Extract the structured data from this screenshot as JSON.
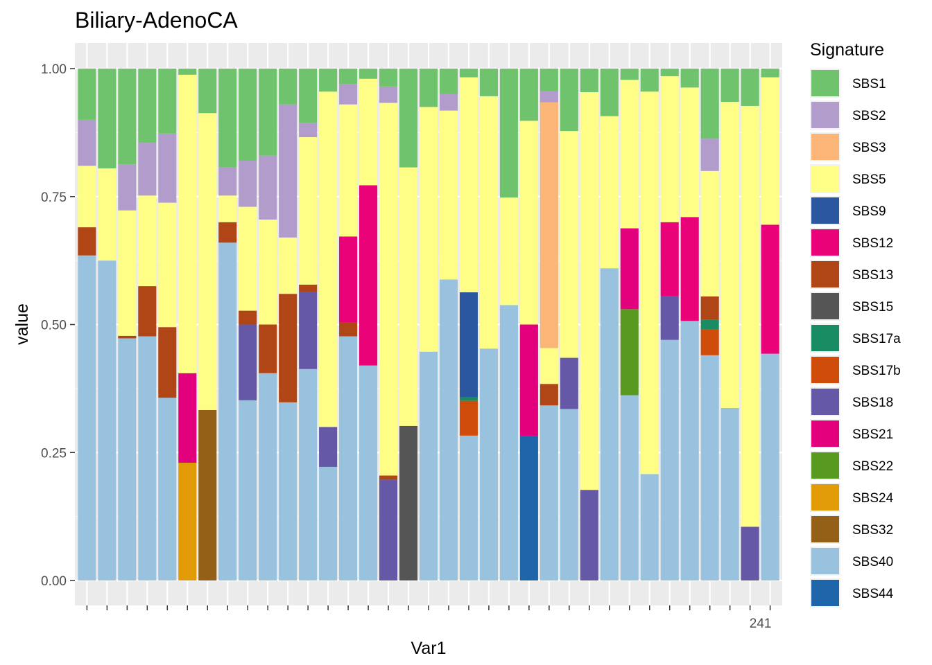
{
  "chart_data": {
    "type": "bar",
    "stacked": true,
    "title": "Biliary-AdenoCA",
    "xlabel": "Var1",
    "ylabel": "value",
    "ylim": [
      0,
      1
    ],
    "yticks": [
      "0.00",
      "0.25",
      "0.50",
      "0.75",
      "1.00"
    ],
    "ytick_values": [
      0,
      0.25,
      0.5,
      0.75,
      1.0
    ],
    "grid": true,
    "legend_title": "Signature",
    "legend_position": "right",
    "x_tick_label_visible": "241",
    "signatures": [
      "SBS1",
      "SBS2",
      "SBS3",
      "SBS5",
      "SBS9",
      "SBS12",
      "SBS13",
      "SBS15",
      "SBS17a",
      "SBS17b",
      "SBS18",
      "SBS21",
      "SBS22",
      "SBS24",
      "SBS32",
      "SBS40",
      "SBS44"
    ],
    "colors": {
      "SBS1": "#70c36d",
      "SBS2": "#b19ccb",
      "SBS3": "#fbb577",
      "SBS5": "#fefe87",
      "SBS9": "#2b57a0",
      "SBS12": "#ea0278",
      "SBS13": "#b04616",
      "SBS15": "#555555",
      "SBS17a": "#1a8c63",
      "SBS17b": "#cf4c0a",
      "SBS18": "#6558a7",
      "SBS21": "#e3007d",
      "SBS22": "#58991f",
      "SBS24": "#e09b06",
      "SBS32": "#946017",
      "SBS40": "#99c2de",
      "SBS44": "#1f65a9"
    },
    "stack_order": [
      "SBS44",
      "SBS40",
      "SBS32",
      "SBS24",
      "SBS22",
      "SBS21",
      "SBS18",
      "SBS17b",
      "SBS17a",
      "SBS15",
      "SBS13",
      "SBS12",
      "SBS9",
      "SBS5",
      "SBS3",
      "SBS2",
      "SBS1"
    ],
    "bars": [
      {
        "SBS40": 0.635,
        "SBS13": 0.055,
        "SBS5": 0.12,
        "SBS2": 0.09,
        "SBS1": 0.1
      },
      {
        "SBS40": 0.625,
        "SBS5": 0.18,
        "SBS1": 0.195
      },
      {
        "SBS40": 0.473,
        "SBS13": 0.005,
        "SBS5": 0.245,
        "SBS2": 0.09,
        "SBS1": 0.187
      },
      {
        "SBS40": 0.477,
        "SBS13": 0.098,
        "SBS5": 0.177,
        "SBS2": 0.103,
        "SBS1": 0.145
      },
      {
        "SBS40": 0.357,
        "SBS13": 0.138,
        "SBS5": 0.243,
        "SBS2": 0.135,
        "SBS1": 0.127
      },
      {
        "SBS24": 0.23,
        "SBS21": 0.175,
        "SBS5": 0.583,
        "SBS1": 0.012
      },
      {
        "SBS32": 0.333,
        "SBS5": 0.58,
        "SBS1": 0.087
      },
      {
        "SBS40": 0.66,
        "SBS13": 0.04,
        "SBS5": 0.052,
        "SBS2": 0.055,
        "SBS1": 0.193
      },
      {
        "SBS40": 0.352,
        "SBS18": 0.148,
        "SBS13": 0.027,
        "SBS5": 0.203,
        "SBS2": 0.09,
        "SBS1": 0.18
      },
      {
        "SBS40": 0.405,
        "SBS13": 0.095,
        "SBS5": 0.205,
        "SBS2": 0.125,
        "SBS1": 0.17
      },
      {
        "SBS40": 0.348,
        "SBS13": 0.212,
        "SBS5": 0.11,
        "SBS2": 0.26,
        "SBS1": 0.07
      },
      {
        "SBS40": 0.413,
        "SBS18": 0.15,
        "SBS13": 0.015,
        "SBS5": 0.288,
        "SBS2": 0.028,
        "SBS1": 0.106
      },
      {
        "SBS40": 0.222,
        "SBS18": 0.078,
        "SBS5": 0.655,
        "SBS1": 0.045
      },
      {
        "SBS40": 0.477,
        "SBS13": 0.027,
        "SBS12": 0.168,
        "SBS5": 0.258,
        "SBS2": 0.04,
        "SBS1": 0.03
      },
      {
        "SBS40": 0.42,
        "SBS12": 0.352,
        "SBS5": 0.208,
        "SBS1": 0.02
      },
      {
        "SBS18": 0.197,
        "SBS13": 0.008,
        "SBS5": 0.728,
        "SBS2": 0.032,
        "SBS1": 0.035
      },
      {
        "SBS15": 0.302,
        "SBS5": 0.505,
        "SBS1": 0.193
      },
      {
        "SBS40": 0.447,
        "SBS5": 0.478,
        "SBS1": 0.075
      },
      {
        "SBS40": 0.588,
        "SBS5": 0.33,
        "SBS2": 0.032,
        "SBS1": 0.05
      },
      {
        "SBS40": 0.283,
        "SBS17b": 0.068,
        "SBS17a": 0.007,
        "SBS9": 0.205,
        "SBS5": 0.42,
        "SBS1": 0.017
      },
      {
        "SBS40": 0.453,
        "SBS5": 0.493,
        "SBS1": 0.054
      },
      {
        "SBS40": 0.538,
        "SBS5": 0.21,
        "SBS1": 0.252
      },
      {
        "SBS44": 0.282,
        "SBS21": 0.218,
        "SBS5": 0.398,
        "SBS1": 0.102
      },
      {
        "SBS40": 0.342,
        "SBS13": 0.042,
        "SBS5": 0.07,
        "SBS3": 0.48,
        "SBS2": 0.022,
        "SBS1": 0.044
      },
      {
        "SBS40": 0.335,
        "SBS18": 0.1,
        "SBS5": 0.443,
        "SBS1": 0.122
      },
      {
        "SBS18": 0.177,
        "SBS5": 0.777,
        "SBS1": 0.046
      },
      {
        "SBS40": 0.61,
        "SBS5": 0.297,
        "SBS1": 0.093
      },
      {
        "SBS40": 0.362,
        "SBS22": 0.168,
        "SBS21": 0.158,
        "SBS5": 0.29,
        "SBS1": 0.022
      },
      {
        "SBS40": 0.208,
        "SBS5": 0.747,
        "SBS1": 0.045
      },
      {
        "SBS40": 0.47,
        "SBS18": 0.085,
        "SBS12": 0.145,
        "SBS5": 0.285,
        "SBS1": 0.015
      },
      {
        "SBS40": 0.507,
        "SBS12": 0.203,
        "SBS5": 0.253,
        "SBS1": 0.037
      },
      {
        "SBS40": 0.44,
        "SBS17b": 0.05,
        "SBS17a": 0.02,
        "SBS13": 0.045,
        "SBS5": 0.245,
        "SBS2": 0.063,
        "SBS1": 0.137
      },
      {
        "SBS40": 0.337,
        "SBS5": 0.598,
        "SBS1": 0.065
      },
      {
        "SBS18": 0.105,
        "SBS5": 0.822,
        "SBS1": 0.073
      },
      {
        "SBS40": 0.443,
        "SBS12": 0.252,
        "SBS5": 0.288,
        "SBS1": 0.017
      }
    ]
  }
}
